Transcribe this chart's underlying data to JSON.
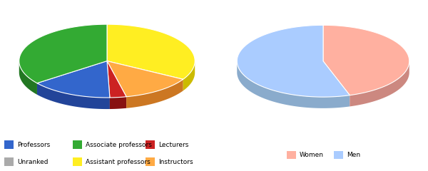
{
  "chart1": {
    "labels": [
      "Assistant professors",
      "Instructors",
      "Lecturers",
      "Professors",
      "Associate professors"
    ],
    "values": [
      33,
      13,
      3,
      15,
      35
    ],
    "colors": [
      "#FFEE22",
      "#FFAA44",
      "#CC2222",
      "#3366CC",
      "#33AA33"
    ],
    "side_colors": [
      "#CCBB00",
      "#CC7722",
      "#881111",
      "#224499",
      "#227722"
    ],
    "start_angle": 90
  },
  "chart2": {
    "labels": [
      "Women",
      "Men"
    ],
    "values": [
      45,
      55
    ],
    "colors": [
      "#FFB0A0",
      "#AACCFF"
    ],
    "side_colors": [
      "#CC8880",
      "#8AABCC"
    ],
    "start_angle": 90
  },
  "legend1_items": [
    {
      "label": "Professors",
      "color": "#3366CC"
    },
    {
      "label": "Associate professors",
      "color": "#33AA33"
    },
    {
      "label": "Lecturers",
      "color": "#CC2222"
    },
    {
      "label": "Unranked",
      "color": "#AAAAAA"
    },
    {
      "label": "Assistant professors",
      "color": "#FFEE22"
    },
    {
      "label": "Instructors",
      "color": "#FFAA44"
    }
  ],
  "legend2_items": [
    {
      "label": "Women",
      "color": "#FFB0A0"
    },
    {
      "label": "Men",
      "color": "#AACCFF"
    }
  ]
}
